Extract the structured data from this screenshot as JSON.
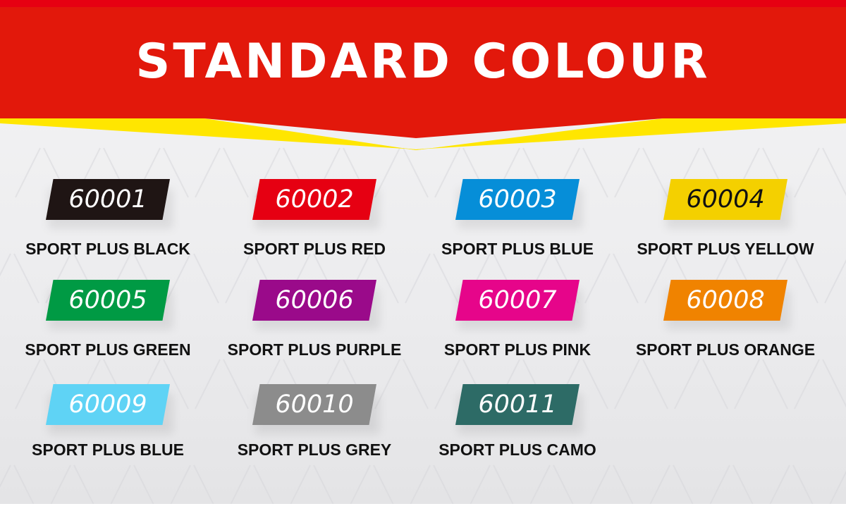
{
  "title": "STANDARD COLOUR",
  "colors": {
    "banner_red": "#e2180b",
    "banner_yellow": "#ffe600"
  },
  "swatches": [
    {
      "code": "60001",
      "name": "SPORT PLUS BLACK",
      "color": "#1f1514",
      "text_color": "#ffffff"
    },
    {
      "code": "60002",
      "name": "SPORT PLUS RED",
      "color": "#e60012",
      "text_color": "#ffffff"
    },
    {
      "code": "60003",
      "name": "SPORT PLUS BLUE",
      "color": "#068ed8",
      "text_color": "#ffffff"
    },
    {
      "code": "60004",
      "name": "SPORT PLUS YELLOW",
      "color": "#f4d000",
      "text_color": "#111111"
    },
    {
      "code": "60005",
      "name": "SPORT PLUS GREEN",
      "color": "#009a44",
      "text_color": "#ffffff"
    },
    {
      "code": "60006",
      "name": "SPORT PLUS PURPLE",
      "color": "#9a0a8a",
      "text_color": "#ffffff"
    },
    {
      "code": "60007",
      "name": "SPORT PLUS PINK",
      "color": "#e6058a",
      "text_color": "#ffffff"
    },
    {
      "code": "60008",
      "name": "SPORT PLUS ORANGE",
      "color": "#f08300",
      "text_color": "#ffffff"
    },
    {
      "code": "60009",
      "name": "SPORT PLUS BLUE",
      "color": "#5fd3f5",
      "text_color": "#ffffff"
    },
    {
      "code": "60010",
      "name": "SPORT PLUS GREY",
      "color": "#8c8c8c",
      "text_color": "#ffffff"
    },
    {
      "code": "60011",
      "name": "SPORT PLUS CAMO",
      "color": "#2d6b66",
      "text_color": "#ffffff"
    }
  ]
}
